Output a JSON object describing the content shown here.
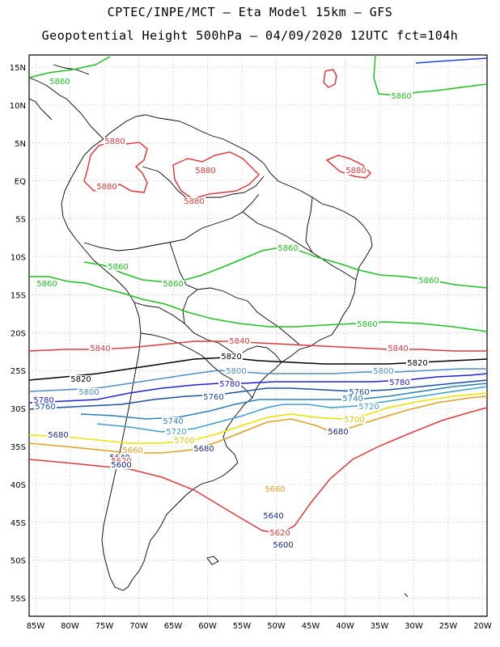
{
  "header": {
    "line1": "CPTEC/INPE/MCT –  Eta Model 15km – GFS",
    "line2": "Geopotential Height 500hPa – 04/09/2020 12UTC fct=104h"
  },
  "map": {
    "lat_labels": [
      "15N",
      "10N",
      "5N",
      "EQ",
      "5S",
      "10S",
      "15S",
      "20S",
      "25S",
      "30S",
      "35S",
      "40S",
      "45S",
      "50S",
      "55S"
    ],
    "lon_labels": [
      "85W",
      "80W",
      "75W",
      "70W",
      "65W",
      "60W",
      "55W",
      "50W",
      "45W",
      "40W",
      "35W",
      "30W",
      "25W",
      "20W"
    ],
    "colors": {
      "c5460": "#1a2c8a",
      "c5620": "#e03a3a",
      "c5680": "#e0a020",
      "c5700": "#f0e000",
      "c5720": "#3aa0d0",
      "c5740": "#2a80b0",
      "c5760": "#1a50a0",
      "c5780": "#2020e0",
      "c5800": "#4a90c0",
      "c5820": "#000000",
      "c5840": "#e03a3a",
      "c5860": "#20c020",
      "c5880": "#e03a3a",
      "c5900": "#2040e0"
    },
    "contour_labels": [
      {
        "text": "5860",
        "color": "#20c020"
      },
      {
        "text": "5860",
        "color": "#20c020"
      },
      {
        "text": "5880",
        "color": "#e03a3a"
      },
      {
        "text": "5880",
        "color": "#e03a3a"
      },
      {
        "text": "5880",
        "color": "#e03a3a"
      },
      {
        "text": "5880",
        "color": "#e03a3a"
      },
      {
        "text": "5880",
        "color": "#e03a3a"
      },
      {
        "text": "5860",
        "color": "#20c020"
      },
      {
        "text": "5860",
        "color": "#20c020"
      },
      {
        "text": "5860",
        "color": "#20c020"
      },
      {
        "text": "5860",
        "color": "#20c020"
      },
      {
        "text": "5860",
        "color": "#20c020"
      },
      {
        "text": "5860",
        "color": "#20c020"
      },
      {
        "text": "5840",
        "color": "#e03a3a"
      },
      {
        "text": "5840",
        "color": "#e03a3a"
      },
      {
        "text": "5840",
        "color": "#e03a3a"
      },
      {
        "text": "5820",
        "color": "#000000"
      },
      {
        "text": "5820",
        "color": "#000000"
      },
      {
        "text": "5820",
        "color": "#000000"
      },
      {
        "text": "5800",
        "color": "#4a90c0"
      },
      {
        "text": "5800",
        "color": "#4a90c0"
      },
      {
        "text": "5800",
        "color": "#4a90c0"
      },
      {
        "text": "5780",
        "color": "#2020e0"
      },
      {
        "text": "5780",
        "color": "#2020e0"
      },
      {
        "text": "5780",
        "color": "#2020e0"
      },
      {
        "text": "5760",
        "color": "#1a50a0"
      },
      {
        "text": "5760",
        "color": "#1a50a0"
      },
      {
        "text": "5760",
        "color": "#1a50a0"
      },
      {
        "text": "5740",
        "color": "#2a80b0"
      },
      {
        "text": "5740",
        "color": "#2a80b0"
      },
      {
        "text": "5720",
        "color": "#3aa0d0"
      },
      {
        "text": "5720",
        "color": "#3aa0d0"
      },
      {
        "text": "5700",
        "color": "#d8c800"
      },
      {
        "text": "5700",
        "color": "#d8c800"
      },
      {
        "text": "5680",
        "color": "#1a2c8a"
      },
      {
        "text": "5680",
        "color": "#1a2c8a"
      },
      {
        "text": "5680",
        "color": "#1a2c8a"
      },
      {
        "text": "5660",
        "color": "#e0a020"
      },
      {
        "text": "5660",
        "color": "#e0a020"
      },
      {
        "text": "5640",
        "color": "#1a2c8a"
      },
      {
        "text": "5640",
        "color": "#1a2c8a"
      },
      {
        "text": "5620",
        "color": "#e03a3a"
      },
      {
        "text": "5620",
        "color": "#e03a3a"
      },
      {
        "text": "5600",
        "color": "#1a2c8a"
      },
      {
        "text": "5600",
        "color": "#1a2c8a"
      }
    ]
  }
}
